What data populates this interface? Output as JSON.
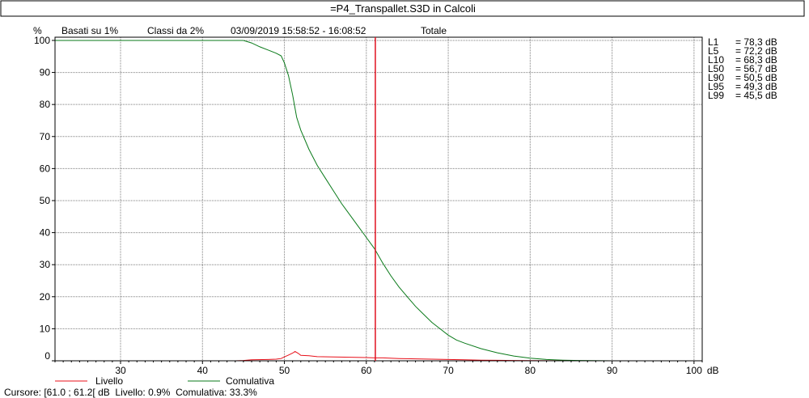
{
  "window_title": "=P4_Transpallet.S3D in Calcoli",
  "header": {
    "y_unit": "%",
    "basis": "Basati su 1%",
    "classes": "Classi da 2%",
    "period": "03/09/2019 15:58:52 - 16:08:52",
    "scope": "Totale"
  },
  "x_unit": "dB",
  "percentiles": [
    {
      "name": "L1",
      "value": "= 78,3 dB"
    },
    {
      "name": "L5",
      "value": "= 72,2 dB"
    },
    {
      "name": "L10",
      "value": "= 68,3 dB"
    },
    {
      "name": "L50",
      "value": "= 56,7 dB"
    },
    {
      "name": "L90",
      "value": "= 50,5 dB"
    },
    {
      "name": "L95",
      "value": "= 49,3 dB"
    },
    {
      "name": "L99",
      "value": "= 45,5 dB"
    }
  ],
  "legend": {
    "livello": "Livello",
    "comulativa": "Comulativa"
  },
  "cursor_text": "Cursore: [61.0 ; 61.2[ dB  Livello: 0.9%  Comulativa: 33.3%",
  "colors": {
    "livello": "#e8101a",
    "comulativa": "#0a7a1a",
    "cursor": "#e01020",
    "grid": "#7f7f7f",
    "axis": "#000000"
  },
  "chart_data": {
    "type": "line",
    "xlim": [
      22,
      101
    ],
    "ylim": [
      0,
      101
    ],
    "x_ticks": [
      30,
      40,
      50,
      60,
      70,
      80,
      90,
      100
    ],
    "y_ticks": [
      0,
      10,
      20,
      30,
      40,
      50,
      60,
      70,
      80,
      90,
      100
    ],
    "grid": true,
    "cursor_x": 61.1,
    "series": [
      {
        "name": "Comulativa",
        "x": [
          22,
          44,
          45,
          46,
          47,
          48,
          49,
          49.6,
          50,
          50.5,
          51,
          51.5,
          52,
          53,
          54,
          55,
          56,
          57,
          58,
          59,
          60,
          61,
          62,
          63,
          64,
          65,
          66,
          67,
          68,
          69,
          70,
          71,
          72,
          74,
          76,
          78,
          80,
          82,
          84,
          86,
          90,
          95,
          100
        ],
        "values": [
          100,
          100,
          100,
          99.2,
          98,
          97,
          96,
          95.2,
          93,
          89,
          83,
          76,
          72,
          66,
          61,
          57,
          53,
          49,
          45.5,
          42,
          38.5,
          35,
          30.5,
          26.5,
          23,
          20,
          17,
          14.5,
          12,
          10,
          8,
          6.5,
          5.5,
          3.8,
          2.5,
          1.5,
          0.8,
          0.4,
          0.2,
          0.1,
          0,
          0,
          0
        ]
      },
      {
        "name": "Livello",
        "x": [
          22,
          44,
          45,
          46,
          48,
          49,
          49.6,
          50,
          50.5,
          51,
          51.3,
          51.7,
          52,
          53,
          54,
          56,
          58,
          60,
          61,
          62,
          64,
          66,
          68,
          70,
          72,
          74,
          76,
          78,
          80,
          85,
          90,
          100
        ],
        "values": [
          0,
          0,
          0.1,
          0.3,
          0.4,
          0.5,
          0.7,
          1.2,
          1.8,
          2.4,
          2.9,
          2.3,
          1.7,
          1.6,
          1.3,
          1.2,
          1.1,
          1.0,
          0.9,
          0.9,
          0.7,
          0.6,
          0.5,
          0.4,
          0.3,
          0.2,
          0.15,
          0.1,
          0.05,
          0,
          0,
          0
        ]
      }
    ]
  }
}
